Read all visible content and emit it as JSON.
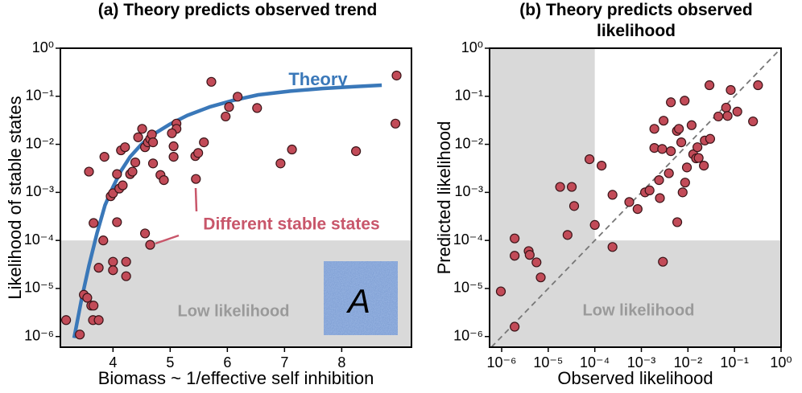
{
  "chart_data": [
    {
      "type": "scatter",
      "title": "(a) Theory predicts observed trend",
      "xlabel": "Biomass ~ 1/effective self inhibition",
      "ylabel": "Likelihood of stable states",
      "xscale": "linear",
      "yscale": "log",
      "xlim": [
        3.08,
        9.22
      ],
      "ylim": [
        6e-07,
        1
      ],
      "xticks": [
        4,
        5,
        6,
        7,
        8
      ],
      "yticks": [
        {
          "value": 1,
          "label": "10⁰"
        },
        {
          "value": 0.1,
          "label": "10⁻¹"
        },
        {
          "value": 0.01,
          "label": "10⁻²"
        },
        {
          "value": 0.001,
          "label": "10⁻³"
        },
        {
          "value": 0.0001,
          "label": "10⁻⁴"
        },
        {
          "value": 1e-05,
          "label": "10⁻⁵"
        },
        {
          "value": 1e-06,
          "label": "10⁻⁶"
        }
      ],
      "color": "#c24b58",
      "x": [
        3.18,
        3.42,
        3.49,
        3.55,
        3.62,
        3.66,
        3.65,
        3.75,
        3.58,
        3.66,
        3.75,
        3.83,
        3.85,
        4.0,
        4.0,
        3.96,
        4.0,
        4.07,
        4.07,
        4.14,
        4.21,
        4.11,
        4.17,
        4.23,
        4.23,
        4.3,
        4.34,
        4.39,
        4.44,
        4.51,
        4.56,
        4.61,
        4.65,
        4.68,
        4.7,
        4.7,
        4.83,
        4.89,
        5.06,
        5.06,
        5.11,
        5.11,
        4.56,
        4.65,
        5.03,
        5.44,
        5.49,
        5.45,
        5.59,
        5.72,
        5.97,
        6.03,
        6.18,
        6.52,
        6.93,
        7.13,
        8.25,
        8.96,
        8.94
      ],
      "values": [
        2.2e-06,
        1.1e-06,
        7.4e-06,
        6.4e-06,
        4.4e-06,
        4.4e-06,
        2.2e-06,
        2.2e-06,
        0.0027,
        0.00023,
        2.7e-05,
        0.0001,
        0.0055,
        3.6e-05,
        2.4e-05,
        0.00083,
        0.00096,
        0.00024,
        0.0024,
        0.0075,
        0.0087,
        0.0012,
        0.0014,
        3.6e-05,
        1.8e-05,
        0.0024,
        0.0027,
        0.0042,
        0.014,
        0.021,
        0.0087,
        0.011,
        0.013,
        0.016,
        0.011,
        0.004,
        0.0023,
        0.0018,
        0.0055,
        0.0091,
        0.027,
        0.021,
        0.00014,
        8.1e-05,
        0.017,
        0.0057,
        0.0066,
        0.0019,
        0.011,
        0.2,
        0.038,
        0.06,
        0.098,
        0.057,
        0.004,
        0.0078,
        0.0072,
        0.27,
        0.027
      ],
      "theory": {
        "label": "Theory",
        "color": "#3a78b9",
        "x": [
          3.32,
          3.45,
          3.58,
          3.72,
          3.86,
          4.0,
          4.14,
          4.3,
          4.49,
          4.7,
          4.99,
          5.3,
          5.69,
          6.1,
          6.54,
          7.1,
          7.66,
          8.2,
          8.7
        ],
        "values": [
          9.3e-07,
          6e-06,
          3e-05,
          0.00014,
          0.00054,
          0.0013,
          0.0028,
          0.0055,
          0.0098,
          0.016,
          0.026,
          0.04,
          0.06,
          0.082,
          0.107,
          0.128,
          0.145,
          0.158,
          0.17
        ]
      },
      "annotation": "Different stable states",
      "annotation_color": "#c8566a",
      "low_region": {
        "label": "Low likelihood",
        "ymax": 0.0001
      },
      "inset_label": "A"
    },
    {
      "type": "scatter",
      "title": "(b) Theory predicts observed likelihood",
      "xlabel": "Observed likelihood",
      "ylabel": "Predicted likelihood",
      "xscale": "log",
      "yscale": "log",
      "xlim": [
        5.5e-07,
        1
      ],
      "ylim": [
        6e-07,
        1
      ],
      "xticks": [
        {
          "value": 1e-06,
          "label": "10⁻⁶"
        },
        {
          "value": 1e-05,
          "label": "10⁻⁵"
        },
        {
          "value": 0.0001,
          "label": "10⁻⁴"
        },
        {
          "value": 0.001,
          "label": "10⁻³"
        },
        {
          "value": 0.01,
          "label": "10⁻²"
        },
        {
          "value": 0.1,
          "label": "10⁻¹"
        },
        {
          "value": 1,
          "label": "10⁰"
        }
      ],
      "yticks": [
        {
          "value": 1,
          "label": "10⁰"
        },
        {
          "value": 0.1,
          "label": "10⁻¹"
        },
        {
          "value": 0.01,
          "label": "10⁻²"
        },
        {
          "value": 0.001,
          "label": "10⁻³"
        },
        {
          "value": 0.0001,
          "label": "10⁻⁴"
        },
        {
          "value": 1e-05,
          "label": "10⁻⁵"
        },
        {
          "value": 1e-06,
          "label": "10⁻⁶"
        }
      ],
      "color": "#c24b58",
      "x": [
        9.6e-07,
        1.9e-06,
        1.9e-06,
        1.9e-06,
        3.8e-06,
        4e-06,
        5.6e-06,
        6.9e-06,
        1.8e-05,
        2.6e-05,
        3.2e-05,
        3.6e-05,
        7.7e-05,
        0.0001,
        0.00014,
        0.00024,
        0.00024,
        0.00055,
        0.00083,
        0.0012,
        0.0015,
        0.0019,
        0.0019,
        0.0024,
        0.0025,
        0.0028,
        0.0029,
        0.003,
        0.0043,
        0.0043,
        0.0039,
        0.0058,
        0.0064,
        0.0072,
        0.0059,
        0.0077,
        0.0087,
        0.0085,
        0.0095,
        0.012,
        0.013,
        0.015,
        0.017,
        0.016,
        0.023,
        0.022,
        0.03,
        0.029,
        0.045,
        0.066,
        0.071,
        0.083,
        0.115,
        0.25,
        0.32
      ],
      "values": [
        8.7e-06,
        1.6e-06,
        4.8e-05,
        0.00011,
        6e-05,
        5e-05,
        3.5e-05,
        1.7e-05,
        0.0013,
        0.00013,
        0.0013,
        0.00052,
        0.0049,
        0.00021,
        0.0036,
        0.00089,
        7.3e-05,
        0.00063,
        0.00045,
        0.001,
        0.0011,
        0.021,
        0.0084,
        0.0018,
        0.00076,
        0.008,
        3.6e-05,
        0.031,
        0.075,
        0.0072,
        0.0025,
        0.019,
        0.021,
        0.011,
        0.00024,
        0.001,
        0.0016,
        0.081,
        0.0033,
        0.025,
        0.0062,
        0.0051,
        0.0052,
        0.0087,
        0.012,
        0.0036,
        0.013,
        0.17,
        0.038,
        0.058,
        0.039,
        0.135,
        0.048,
        0.03,
        0.17
      ],
      "diagonal": true,
      "low_region": {
        "label": "Low likelihood",
        "xmax": 0.0001,
        "ymax": 0.0001
      }
    }
  ]
}
